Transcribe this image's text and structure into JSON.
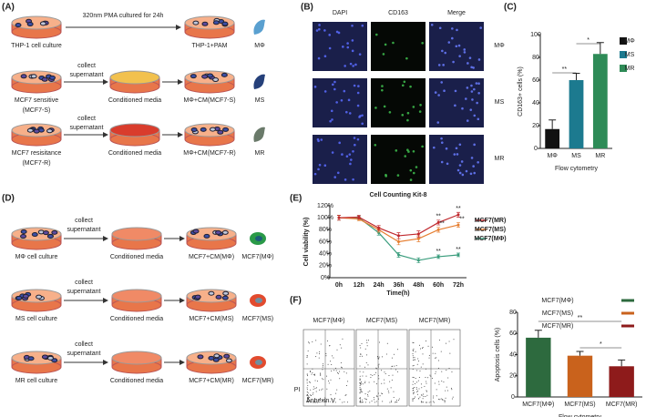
{
  "labels": [
    "(A)",
    "(B)",
    "(C)",
    "(D)",
    "(E)",
    "(F)"
  ],
  "panel_a": {
    "top_arrow": "320nm PMA cultured for 24h",
    "rows": [
      {
        "source": [
          "THP-1 cell culture"
        ],
        "product": "THP-1+PAM",
        "cell": "MΦ"
      },
      {
        "collect": [
          "collect",
          "supernatant"
        ],
        "source": [
          "MCF7 sensitive",
          "(MCF7-S)"
        ],
        "media": "Conditioned media",
        "product": "MΦ+CM(MCF7-S)",
        "cell": "MS"
      },
      {
        "collect": [
          "collect",
          "supernatant"
        ],
        "source": [
          "MCF7 resisitance",
          "(MCF7-R)"
        ],
        "media": "Conditioned media",
        "product": "MΦ+CM(MCF7-R)",
        "cell": "MR"
      }
    ]
  },
  "panel_b": {
    "columns": [
      "DAPI",
      "CD163",
      "Merge"
    ],
    "rows": [
      "MΦ",
      "MS",
      "MR"
    ]
  },
  "panel_d": {
    "rows": [
      {
        "collect": [
          "collect",
          "supernatant"
        ],
        "source": "MΦ cell culture",
        "media": "Conditioned media",
        "product": "MCF7+CM(MΦ)",
        "cell": "MCF7(MΦ)"
      },
      {
        "collect": [
          "collect",
          "supernatant"
        ],
        "source": "MS cell culture",
        "media": "Conditioned media",
        "product": "MCF7+CM(MS)",
        "cell": "MCF7(MS)"
      },
      {
        "collect": [
          "collect",
          "supernatant"
        ],
        "source": "MR cell culture",
        "media": "Conditioned media",
        "product": "MCF7+CM(MR)",
        "cell": "MCF7(MR)"
      }
    ]
  },
  "flow_plots": {
    "titles": [
      "MCF7(MΦ)",
      "MCF7(MS)",
      "MCF7(MR)"
    ],
    "y_label": "PI",
    "x_label": "Annexin V"
  },
  "chart_data": [
    {
      "type": "bar",
      "ylabel": "CD163+ cells (%)",
      "xlabel": "Flow cytometry",
      "categories": [
        "MΦ",
        "MS",
        "MR"
      ],
      "values": [
        17,
        60,
        83
      ],
      "errors": [
        8,
        6,
        10
      ],
      "colors": [
        "#111111",
        "#1c7a8f",
        "#2e8b57"
      ],
      "ylim": [
        0,
        100
      ],
      "yticks": [
        0,
        20,
        40,
        60,
        80,
        100
      ],
      "legend": "top-right",
      "annotations": [
        "**",
        "*"
      ]
    },
    {
      "type": "line",
      "title": "Cell Counting Kit-8",
      "xlabel": "Time(h)",
      "ylabel": "Cell viability (%)",
      "categories": [
        "0h",
        "12h",
        "24h",
        "36h",
        "48h",
        "60h",
        "72h"
      ],
      "series": [
        {
          "name": "MCF7(MΦ)",
          "color": "#3a9d7d",
          "values": [
            100,
            100,
            75,
            38,
            29,
            35,
            38
          ],
          "errors": [
            4,
            3,
            4,
            4,
            4,
            3,
            3
          ]
        },
        {
          "name": "MCF7(MS)",
          "color": "#e67e30",
          "values": [
            100,
            98,
            80,
            60,
            65,
            80,
            88
          ],
          "errors": [
            4,
            3,
            4,
            5,
            5,
            4,
            4
          ]
        },
        {
          "name": "MCF7(MR)",
          "color": "#c0282d",
          "values": [
            100,
            101,
            83,
            70,
            73,
            92,
            105
          ],
          "errors": [
            4,
            3,
            4,
            5,
            5,
            4,
            4
          ]
        }
      ],
      "ylim": [
        0,
        120
      ],
      "yticks": [
        {
          "value": 0,
          "label": "0%"
        },
        {
          "value": 20,
          "label": "20%"
        },
        {
          "value": 40,
          "label": "40%"
        },
        {
          "value": 60,
          "label": "60%"
        },
        {
          "value": 80,
          "label": "80%"
        },
        {
          "value": 100,
          "label": "100%"
        },
        {
          "value": 120,
          "label": "120%"
        }
      ],
      "legend": "right",
      "annotations": [
        "**",
        "**",
        "**",
        "**",
        "**",
        "**"
      ]
    },
    {
      "type": "bar",
      "ylabel": "Apoptosis cells (%)",
      "xlabel": "Flow cytometry",
      "categories": [
        "MCF7(MΦ)",
        "MCF7(MS)",
        "MCF7(MR)"
      ],
      "values": [
        56,
        39,
        29
      ],
      "errors": [
        7,
        4,
        6
      ],
      "colors": [
        "#2d6a3e",
        "#c9621c",
        "#8e1b1b"
      ],
      "ylim": [
        0,
        80
      ],
      "yticks": [
        0,
        20,
        40,
        60,
        80
      ],
      "legend": "top",
      "annotations": [
        "**",
        "*"
      ]
    }
  ]
}
